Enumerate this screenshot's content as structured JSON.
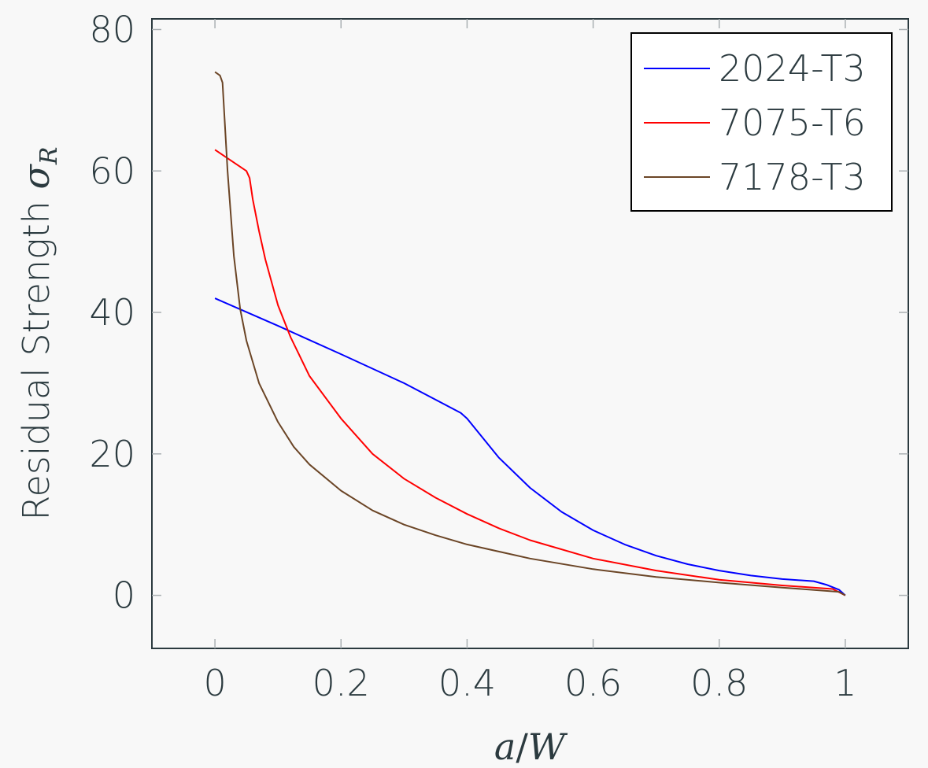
{
  "chart_data": {
    "type": "line",
    "xlabel": {
      "var1": "a",
      "slash": "/",
      "var2": "W"
    },
    "ylabel": {
      "text": "Residual Strength ",
      "symbol": "σ",
      "subscript": "R"
    },
    "xlim": [
      -0.1,
      1.1
    ],
    "ylim": [
      -7.5,
      81.5
    ],
    "xticks": [
      0,
      0.2,
      0.4,
      0.6,
      0.8,
      1
    ],
    "xtick_labels": [
      "0",
      "0.2",
      "0.4",
      "0.6",
      "0.8",
      "1"
    ],
    "yticks": [
      0,
      20,
      40,
      60,
      80
    ],
    "ytick_labels": [
      "0",
      "20",
      "40",
      "60",
      "80"
    ],
    "grid": false,
    "legend_position": "top-right",
    "series": [
      {
        "name": "2024-T3",
        "color": "#0000ff",
        "x": [
          0,
          0.1,
          0.2,
          0.3,
          0.39,
          0.4,
          0.45,
          0.5,
          0.55,
          0.6,
          0.65,
          0.7,
          0.75,
          0.8,
          0.85,
          0.9,
          0.95,
          0.97,
          0.99,
          1.0
        ],
        "y": [
          42,
          38.1,
          34.1,
          30.0,
          25.8,
          25.0,
          19.5,
          15.2,
          11.8,
          9.2,
          7.2,
          5.6,
          4.4,
          3.5,
          2.8,
          2.3,
          2.0,
          1.5,
          0.8,
          0
        ]
      },
      {
        "name": "7075-T6",
        "color": "#ff0000",
        "x": [
          0,
          0.05,
          0.055,
          0.06,
          0.07,
          0.08,
          0.1,
          0.12,
          0.15,
          0.2,
          0.25,
          0.3,
          0.35,
          0.4,
          0.45,
          0.5,
          0.6,
          0.7,
          0.8,
          0.9,
          0.98,
          1.0
        ],
        "y": [
          63,
          60,
          59,
          56,
          51.5,
          47.5,
          41.0,
          36.5,
          31.0,
          25.0,
          20.0,
          16.5,
          13.8,
          11.5,
          9.5,
          7.8,
          5.2,
          3.5,
          2.2,
          1.4,
          0.9,
          0
        ]
      },
      {
        "name": "7178-T3",
        "color": "#6b4526",
        "x": [
          0,
          0.008,
          0.012,
          0.02,
          0.03,
          0.04,
          0.05,
          0.07,
          0.1,
          0.125,
          0.15,
          0.2,
          0.25,
          0.3,
          0.35,
          0.4,
          0.5,
          0.6,
          0.7,
          0.8,
          0.9,
          0.99,
          1.0
        ],
        "y": [
          74,
          73.5,
          72.5,
          60.0,
          48.0,
          40.5,
          36.0,
          30.0,
          24.5,
          21.0,
          18.5,
          14.8,
          12.0,
          10.0,
          8.5,
          7.2,
          5.2,
          3.7,
          2.6,
          1.8,
          1.1,
          0.5,
          0
        ]
      }
    ]
  }
}
